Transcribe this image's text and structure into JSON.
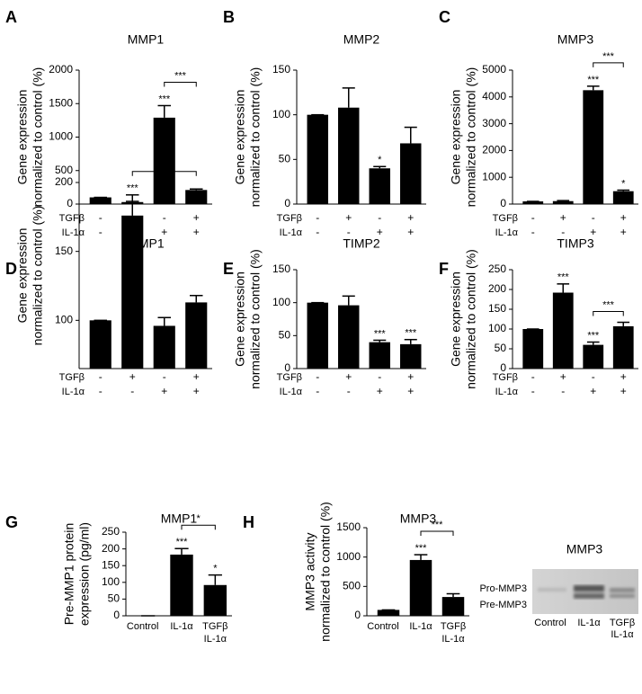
{
  "chart_data": [
    {
      "type": "bar",
      "panel": "A",
      "title": "MMP1",
      "ylabel": [
        "Gene expression",
        "normalized to control (%)"
      ],
      "values": [
        100,
        30,
        1290,
        210
      ],
      "errors": [
        0,
        10,
        180,
        15
      ],
      "stars": [
        null,
        null,
        "***",
        null
      ],
      "bracket": {
        "between": [
          2,
          3
        ],
        "label": "***"
      },
      "conditions": [
        {
          "name": "TGFβ",
          "values": [
            "-",
            "+",
            "-",
            "+"
          ]
        },
        {
          "name": "IL-1α",
          "values": [
            "-",
            "-",
            "+",
            "+"
          ]
        }
      ],
      "ylim": [
        0,
        2000
      ],
      "yticks": [
        0,
        500,
        1000,
        1500,
        2000
      ],
      "color": "#000000"
    },
    {
      "type": "bar",
      "panel": "B",
      "title": "MMP2",
      "ylabel": [
        "Gene expression",
        "normalized to control (%)"
      ],
      "values": [
        100,
        108,
        40,
        68
      ],
      "errors": [
        0,
        22,
        2,
        18
      ],
      "stars": [
        null,
        null,
        "*",
        null
      ],
      "conditions": [
        {
          "name": "TGFβ",
          "values": [
            "-",
            "+",
            "-",
            "+"
          ]
        },
        {
          "name": "IL-1α",
          "values": [
            "-",
            "-",
            "+",
            "+"
          ]
        }
      ],
      "ylim": [
        0,
        150
      ],
      "yticks": [
        0,
        50,
        100,
        150
      ],
      "color": "#000000"
    },
    {
      "type": "bar",
      "panel": "C",
      "title": "MMP3",
      "ylabel": [
        "Gene expression",
        "normalized to control (%)"
      ],
      "values": [
        100,
        110,
        4250,
        480
      ],
      "errors": [
        0,
        20,
        150,
        40
      ],
      "stars": [
        null,
        null,
        "***",
        "*"
      ],
      "bracket": {
        "between": [
          2,
          3
        ],
        "label": "***"
      },
      "conditions": [
        {
          "name": "TGFβ",
          "values": [
            "-",
            "+",
            "-",
            "+"
          ]
        },
        {
          "name": "IL-1α",
          "values": [
            "-",
            "-",
            "+",
            "+"
          ]
        }
      ],
      "ylim": [
        0,
        5000
      ],
      "yticks": [
        0,
        1000,
        2000,
        3000,
        4000,
        5000
      ],
      "color": "#000000"
    },
    {
      "type": "bar",
      "panel": "D",
      "title": "TIMP1",
      "ylabel": [
        "Gene expression",
        "normalized to control (%)"
      ],
      "values": [
        100,
        176,
        96,
        113
      ],
      "errors": [
        0,
        15,
        6,
        5
      ],
      "stars": [
        null,
        "***",
        null,
        null
      ],
      "bracket": {
        "between": [
          1,
          3
        ],
        "label": "***"
      },
      "conditions": [
        {
          "name": "TGFβ",
          "values": [
            "-",
            "+",
            "-",
            "+"
          ]
        },
        {
          "name": "IL-1α",
          "values": [
            "-",
            "-",
            "+",
            "+"
          ]
        }
      ],
      "ylim": [
        65,
        200
      ],
      "yticks": [
        100,
        150,
        200
      ],
      "color": "#000000"
    },
    {
      "type": "bar",
      "panel": "E",
      "title": "TIMP2",
      "ylabel": [
        "Gene expression",
        "normalized to control (%)"
      ],
      "values": [
        100,
        96,
        40,
        37
      ],
      "errors": [
        0,
        14,
        3,
        7
      ],
      "stars": [
        null,
        null,
        "***",
        "***"
      ],
      "conditions": [
        {
          "name": "TGFβ",
          "values": [
            "-",
            "+",
            "-",
            "+"
          ]
        },
        {
          "name": "IL-1α",
          "values": [
            "-",
            "-",
            "+",
            "+"
          ]
        }
      ],
      "ylim": [
        0,
        150
      ],
      "yticks": [
        0,
        50,
        100,
        150
      ],
      "color": "#000000"
    },
    {
      "type": "bar",
      "panel": "F",
      "title": "TIMP3",
      "ylabel": [
        "Gene expression",
        "normalized to control (%)"
      ],
      "values": [
        100,
        192,
        60,
        107
      ],
      "errors": [
        0,
        22,
        7,
        10
      ],
      "stars": [
        null,
        "***",
        "***",
        null
      ],
      "bracket": {
        "between": [
          2,
          3
        ],
        "label": "***"
      },
      "conditions": [
        {
          "name": "TGFβ",
          "values": [
            "-",
            "+",
            "-",
            "+"
          ]
        },
        {
          "name": "IL-1α",
          "values": [
            "-",
            "-",
            "+",
            "+"
          ]
        }
      ],
      "ylim": [
        0,
        250
      ],
      "yticks": [
        0,
        50,
        100,
        150,
        200,
        250
      ],
      "color": "#000000"
    },
    {
      "type": "bar",
      "panel": "G",
      "title": "MMP1",
      "ylabel": [
        "Pre-MMP1 protein",
        "expression (pg/ml)"
      ],
      "categories": [
        [
          "Control"
        ],
        [
          "IL-1α"
        ],
        [
          "TGFβ",
          "IL-1α"
        ]
      ],
      "values": [
        0,
        183,
        92
      ],
      "errors": [
        0,
        18,
        30
      ],
      "stars": [
        null,
        "***",
        "*"
      ],
      "bracket": {
        "between": [
          1,
          2
        ],
        "label": "*"
      },
      "ylim": [
        0,
        250
      ],
      "yticks": [
        0,
        50,
        100,
        150,
        200,
        250
      ],
      "color": "#000000"
    },
    {
      "type": "bar",
      "panel": "H",
      "title": "MMP3",
      "ylabel": [
        "MMP3 activity",
        "normalized to control (%)"
      ],
      "categories": [
        [
          "Control"
        ],
        [
          "IL-1α"
        ],
        [
          "TGFβ",
          "IL-1α"
        ]
      ],
      "values": [
        100,
        950,
        320
      ],
      "errors": [
        0,
        90,
        55
      ],
      "stars": [
        null,
        "***",
        null
      ],
      "bracket": {
        "between": [
          1,
          2
        ],
        "label": "***"
      },
      "ylim": [
        0,
        1500
      ],
      "yticks": [
        0,
        500,
        1000,
        1500
      ],
      "color": "#000000"
    }
  ],
  "blot": {
    "title": "MMP3",
    "bands": [
      "Pro-MMP3",
      "Pre-MMP3"
    ],
    "lanes": [
      [
        "Control"
      ],
      [
        "IL-1α"
      ],
      [
        "TGFβ",
        "IL-1α"
      ]
    ]
  }
}
